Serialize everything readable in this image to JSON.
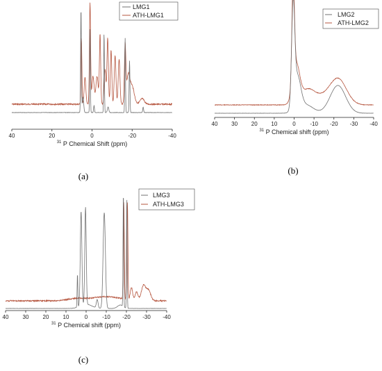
{
  "chart_data": [
    {
      "type": "line",
      "panel_label": "(a)",
      "xlabel_sup": "31",
      "xlabel": "P Chemical Shift (ppm)",
      "xlim": [
        40,
        -40
      ],
      "xticks": [
        "40",
        "20",
        "0",
        "-20",
        "-40"
      ],
      "grid": false,
      "legend_position": "top-right",
      "series": [
        {
          "name": "LMG1",
          "color": "#707070"
        },
        {
          "name": "ATH-LMG1",
          "color": "#b5543d"
        }
      ]
    },
    {
      "type": "line",
      "panel_label": "(b)",
      "xlabel_sup": "31",
      "xlabel": "P Chemical shift (ppm)",
      "xlim": [
        40,
        -40
      ],
      "xticks": [
        "40",
        "30",
        "20",
        "10",
        "0",
        "-10",
        "-20",
        "-30",
        "-40"
      ],
      "grid": false,
      "legend_position": "top-right",
      "series": [
        {
          "name": "LMG2",
          "color": "#707070"
        },
        {
          "name": "ATH-LMG2",
          "color": "#b5543d"
        }
      ]
    },
    {
      "type": "line",
      "panel_label": "(c)",
      "xlabel_sup": "31",
      "xlabel": "P Chemical shift (ppm)",
      "xlim": [
        40,
        -40
      ],
      "xticks": [
        "40",
        "30",
        "20",
        "10",
        "0",
        "-10",
        "-20",
        "-30",
        "-40"
      ],
      "grid": false,
      "legend_position": "top-right",
      "series": [
        {
          "name": "LMG3",
          "color": "#707070"
        },
        {
          "name": "ATH-LMG3",
          "color": "#b5543d"
        }
      ]
    }
  ]
}
